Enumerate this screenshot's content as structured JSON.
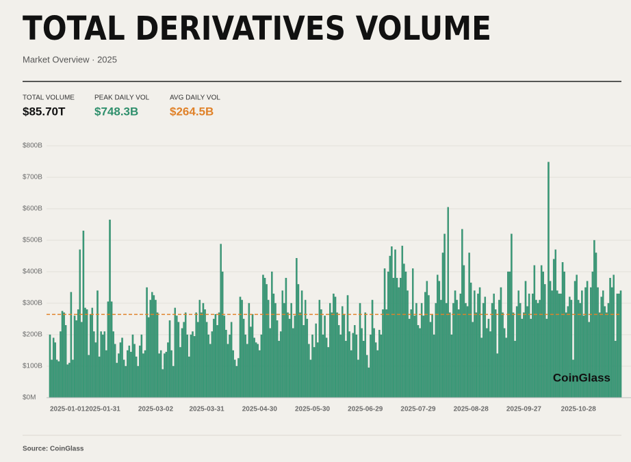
{
  "chart_data": {
    "type": "bar",
    "title": "TOTAL DERIVATIVES VOLUME",
    "subtitle": "Market Overview · 2025",
    "stats": [
      {
        "label": "TOTAL VOLUME",
        "value": "$85.70T",
        "color": "#111111"
      },
      {
        "label": "PEAK DAILY VOL",
        "value": "$748.3B",
        "color": "#2f8f6c"
      },
      {
        "label": "AVG DAILY VOL",
        "value": "$264.5B",
        "color": "#e0822a"
      }
    ],
    "watermark": "CoinGlass",
    "source": "Source: CoinGlass",
    "color": "#3a9a78",
    "grid": true,
    "reference_line": {
      "value": 264.5,
      "color": "#e0822a"
    },
    "ylim": [
      0,
      800
    ],
    "yticks": [
      {
        "value": 0,
        "label": "$0M"
      },
      {
        "value": 100,
        "label": "$100B"
      },
      {
        "value": 200,
        "label": "$200B"
      },
      {
        "value": 300,
        "label": "$300B"
      },
      {
        "value": 400,
        "label": "$400B"
      },
      {
        "value": 500,
        "label": "$500B"
      },
      {
        "value": 600,
        "label": "$600B"
      },
      {
        "value": 700,
        "label": "$700B"
      },
      {
        "value": 800,
        "label": "$800B"
      }
    ],
    "categories": [
      "2025-01-01",
      null,
      null,
      null,
      null,
      null,
      null,
      null,
      null,
      null,
      null,
      null,
      null,
      null,
      null,
      null,
      null,
      null,
      null,
      null,
      null,
      null,
      null,
      null,
      null,
      null,
      null,
      null,
      null,
      null,
      "2025-01-31",
      null,
      null,
      null,
      null,
      null,
      null,
      null,
      null,
      null,
      null,
      null,
      null,
      null,
      null,
      null,
      null,
      null,
      null,
      null,
      null,
      null,
      null,
      null,
      null,
      null,
      null,
      null,
      null,
      null,
      "2025-03-02",
      null,
      null,
      null,
      null,
      null,
      null,
      null,
      null,
      null,
      null,
      null,
      null,
      null,
      null,
      null,
      null,
      null,
      null,
      null,
      null,
      null,
      null,
      null,
      null,
      null,
      null,
      null,
      null,
      "2025-03-31",
      null,
      null,
      null,
      null,
      null,
      null,
      null,
      null,
      null,
      null,
      null,
      null,
      null,
      null,
      null,
      null,
      null,
      null,
      null,
      null,
      null,
      null,
      null,
      null,
      null,
      null,
      null,
      null,
      null,
      "2025-04-30",
      null,
      null,
      null,
      null,
      null,
      null,
      null,
      null,
      null,
      null,
      null,
      null,
      null,
      null,
      null,
      null,
      null,
      null,
      null,
      null,
      null,
      null,
      null,
      null,
      null,
      null,
      null,
      null,
      null,
      "2025-05-30",
      null,
      null,
      null,
      null,
      null,
      null,
      null,
      null,
      null,
      null,
      null,
      null,
      null,
      null,
      null,
      null,
      null,
      null,
      null,
      null,
      null,
      null,
      null,
      null,
      null,
      null,
      null,
      null,
      null,
      "2025-06-29",
      null,
      null,
      null,
      null,
      null,
      null,
      null,
      null,
      null,
      null,
      null,
      null,
      null,
      null,
      null,
      null,
      null,
      null,
      null,
      null,
      null,
      null,
      null,
      null,
      null,
      null,
      null,
      null,
      null,
      "2025-07-29",
      null,
      null,
      null,
      null,
      null,
      null,
      null,
      null,
      null,
      null,
      null,
      null,
      null,
      null,
      null,
      null,
      null,
      null,
      null,
      null,
      null,
      null,
      null,
      null,
      null,
      null,
      null,
      null,
      null,
      "2025-08-28",
      null,
      null,
      null,
      null,
      null,
      null,
      null,
      null,
      null,
      null,
      null,
      null,
      null,
      null,
      null,
      null,
      null,
      null,
      null,
      null,
      null,
      null,
      null,
      null,
      null,
      null,
      null,
      null,
      null,
      "2025-09-27",
      null,
      null,
      null,
      null,
      null,
      null,
      null,
      null,
      null,
      null,
      null,
      null,
      null,
      null,
      null,
      null,
      null,
      null,
      null,
      null,
      null,
      null,
      null,
      null,
      null,
      null,
      null,
      null,
      null,
      null,
      "2025-10-28",
      null,
      null,
      null,
      null,
      null,
      null,
      null,
      null,
      null,
      null,
      null,
      null,
      null,
      null,
      null,
      null,
      null,
      null,
      null,
      null,
      null,
      null,
      null,
      null
    ],
    "values": [
      200,
      120,
      190,
      175,
      120,
      115,
      210,
      275,
      270,
      230,
      105,
      110,
      335,
      120,
      260,
      245,
      280,
      470,
      240,
      530,
      285,
      280,
      135,
      265,
      285,
      210,
      175,
      340,
      130,
      210,
      200,
      210,
      150,
      305,
      565,
      305,
      210,
      170,
      110,
      140,
      175,
      190,
      120,
      100,
      150,
      165,
      145,
      200,
      170,
      130,
      100,
      165,
      200,
      140,
      150,
      350,
      255,
      310,
      335,
      325,
      310,
      270,
      140,
      150,
      90,
      140,
      145,
      175,
      245,
      150,
      100,
      285,
      260,
      240,
      160,
      220,
      240,
      270,
      200,
      130,
      200,
      210,
      195,
      270,
      240,
      310,
      270,
      300,
      280,
      240,
      200,
      170,
      210,
      250,
      265,
      230,
      270,
      488,
      400,
      260,
      215,
      170,
      200,
      240,
      150,
      120,
      100,
      125,
      320,
      310,
      250,
      200,
      170,
      300,
      225,
      265,
      190,
      175,
      170,
      150,
      200,
      390,
      380,
      360,
      310,
      220,
      400,
      330,
      300,
      245,
      180,
      210,
      340,
      300,
      380,
      270,
      250,
      300,
      220,
      260,
      443,
      360,
      270,
      340,
      230,
      310,
      250,
      170,
      120,
      200,
      160,
      235,
      175,
      310,
      280,
      200,
      260,
      190,
      160,
      300,
      270,
      330,
      320,
      270,
      230,
      200,
      290,
      265,
      180,
      325,
      210,
      150,
      205,
      230,
      200,
      120,
      300,
      220,
      180,
      270,
      135,
      95,
      200,
      310,
      220,
      175,
      150,
      215,
      200,
      280,
      410,
      280,
      400,
      450,
      480,
      380,
      470,
      380,
      350,
      380,
      482,
      425,
      400,
      340,
      250,
      280,
      410,
      260,
      300,
      230,
      220,
      300,
      260,
      335,
      370,
      325,
      240,
      265,
      200,
      300,
      390,
      370,
      310,
      460,
      520,
      300,
      605,
      270,
      200,
      300,
      340,
      310,
      280,
      330,
      535,
      420,
      300,
      290,
      460,
      365,
      240,
      340,
      270,
      330,
      350,
      190,
      300,
      320,
      220,
      250,
      210,
      300,
      330,
      280,
      140,
      310,
      350,
      270,
      220,
      190,
      400,
      400,
      520,
      270,
      180,
      290,
      340,
      300,
      250,
      270,
      370,
      290,
      330,
      250,
      330,
      420,
      310,
      300,
      310,
      420,
      400,
      360,
      250,
      748.3,
      370,
      340,
      440,
      470,
      340,
      330,
      330,
      430,
      400,
      270,
      290,
      320,
      310,
      120,
      370,
      390,
      310,
      300,
      340,
      260,
      350,
      370,
      240,
      350,
      400,
      500,
      460,
      350,
      270,
      320,
      340,
      290,
      270,
      300,
      380,
      350,
      390,
      180,
      330,
      330,
      340
    ]
  }
}
